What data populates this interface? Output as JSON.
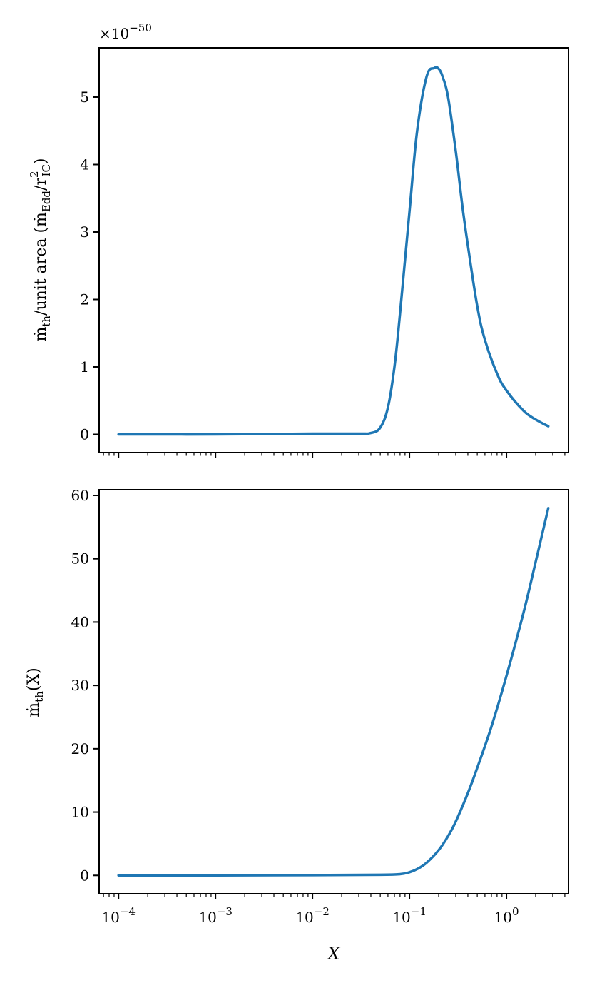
{
  "chart_data": [
    {
      "type": "line",
      "xscale": "log",
      "xlim": [
        6.31e-05,
        4.36
      ],
      "ylim": [
        -0.27,
        5.73
      ],
      "yticks": [
        0,
        1,
        2,
        3,
        4,
        5
      ],
      "ytick_labels": [
        "0",
        "1",
        "2",
        "3",
        "4",
        "5"
      ],
      "offset_label_base": "×10",
      "offset_label_exp": "−50",
      "ylabel": "ṁ_th/unit area (ṁ_Edd/r²_IC)",
      "xlabel": "",
      "color": "#1f77b4",
      "series": [
        {
          "x": [
            0.0001,
            0.001,
            0.01,
            0.03,
            0.04,
            0.05,
            0.06,
            0.07,
            0.08,
            0.1,
            0.12,
            0.15,
            0.18,
            0.2,
            0.22,
            0.25,
            0.3,
            0.35,
            0.4,
            0.5,
            0.6,
            0.8,
            1.0,
            1.5,
            2.0,
            2.7
          ],
          "y": [
            0,
            0,
            0.01,
            0.01,
            0.02,
            0.1,
            0.4,
            1.0,
            1.8,
            3.3,
            4.5,
            5.3,
            5.43,
            5.42,
            5.3,
            5.0,
            4.2,
            3.4,
            2.8,
            1.9,
            1.4,
            0.9,
            0.65,
            0.35,
            0.22,
            0.12
          ]
        }
      ]
    },
    {
      "type": "line",
      "xscale": "log",
      "xlim": [
        6.31e-05,
        4.36
      ],
      "ylim": [
        -2.9,
        60.9
      ],
      "yticks": [
        0,
        10,
        20,
        30,
        40,
        50,
        60
      ],
      "ytick_labels": [
        "0",
        "10",
        "20",
        "30",
        "40",
        "50",
        "60"
      ],
      "xticks": [
        0.0001,
        0.001,
        0.01,
        0.1,
        1
      ],
      "xtick_base": "10",
      "xtick_exponents": [
        "−4",
        "−3",
        "−2",
        "−1",
        "0"
      ],
      "ylabel": "ṁ_th(X)",
      "xlabel": "X",
      "color": "#1f77b4",
      "series": [
        {
          "x": [
            0.0001,
            0.001,
            0.01,
            0.05,
            0.08,
            0.1,
            0.12,
            0.15,
            0.2,
            0.25,
            0.3,
            0.4,
            0.5,
            0.7,
            1.0,
            1.5,
            2.0,
            2.7
          ],
          "y": [
            0,
            0,
            0.05,
            0.1,
            0.2,
            0.5,
            1.0,
            2.0,
            4.0,
            6.2,
            8.5,
            13.0,
            17.0,
            23.5,
            31.5,
            41.5,
            49.5,
            58.0
          ]
        }
      ]
    }
  ]
}
